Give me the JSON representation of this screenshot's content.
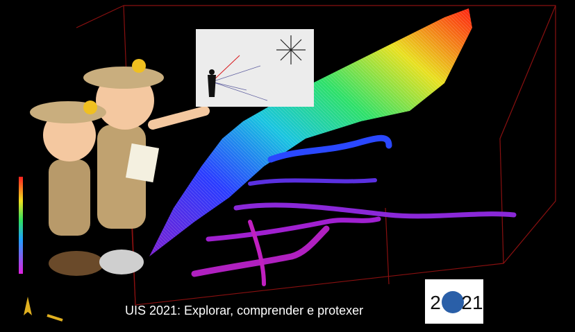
{
  "caption": "UIS 2021: Explorar, comprender e protexer",
  "logo": {
    "left": "2",
    "right": "21"
  }
}
